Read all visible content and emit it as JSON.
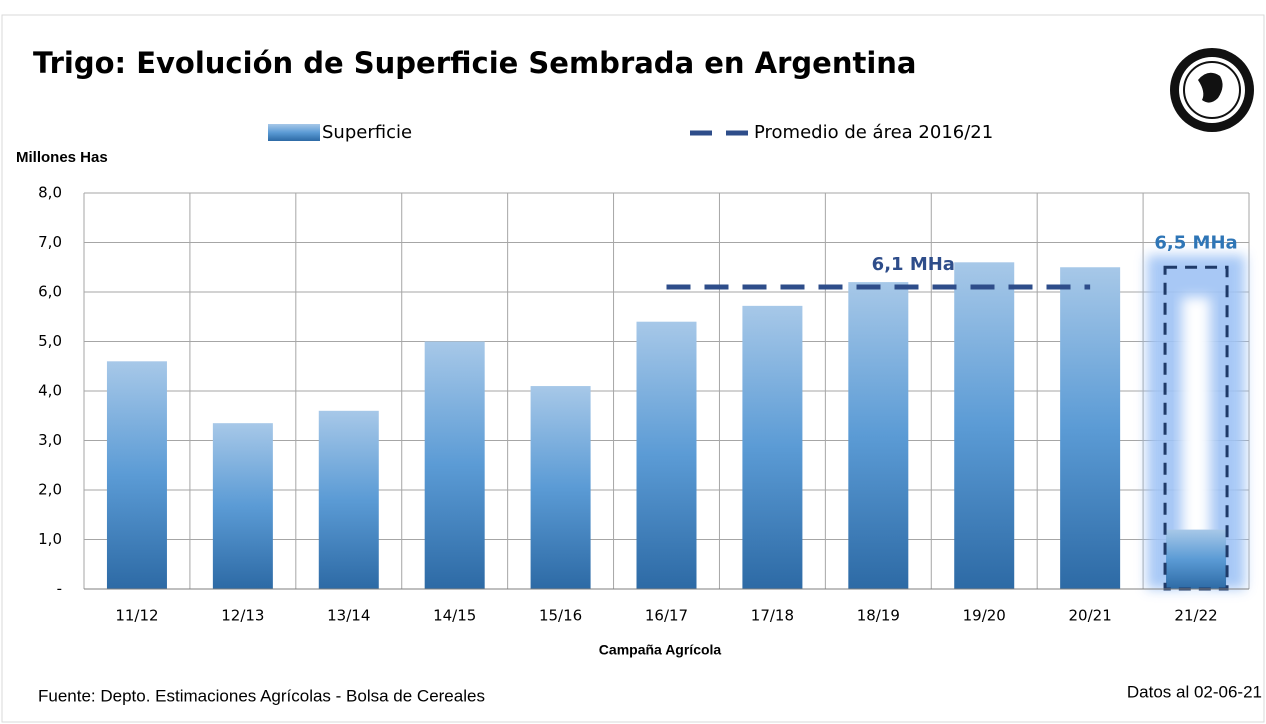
{
  "chart_data": {
    "type": "bar",
    "title": "Trigo: Evolución de Superficie Sembrada en Argentina",
    "y_label": "Millones Has",
    "x_label": "Campaña Agrícola",
    "source": "Fuente: Depto. Estimaciones Agrícolas - Bolsa de Cereales",
    "date_note": "Datos al 02-06-21",
    "categories": [
      "11/12",
      "12/13",
      "13/14",
      "14/15",
      "15/16",
      "16/17",
      "17/18",
      "18/19",
      "19/20",
      "20/21",
      "21/22"
    ],
    "series": [
      {
        "name": "Superficie",
        "color": "#3f7fbf",
        "values": [
          4.6,
          3.35,
          3.6,
          5.0,
          4.1,
          5.4,
          5.72,
          6.2,
          6.6,
          6.5,
          1.2
        ]
      },
      {
        "name": "Promedio de área 2016/21",
        "type": "line",
        "color": "#2e4d8a",
        "values": [
          null,
          null,
          null,
          null,
          null,
          6.1,
          6.1,
          6.1,
          6.1,
          6.1,
          null
        ],
        "label": "6,1 MHa"
      }
    ],
    "projection": {
      "category": "21/22",
      "value": 6.5,
      "label": "6,5 MHa"
    },
    "ylim": [
      0,
      8
    ],
    "yticks": [
      {
        "value": 0,
        "label": "-"
      },
      {
        "value": 1,
        "label": "1,0"
      },
      {
        "value": 2,
        "label": "2,0"
      },
      {
        "value": 3,
        "label": "3,0"
      },
      {
        "value": 4,
        "label": "4,0"
      },
      {
        "value": 5,
        "label": "5,0"
      },
      {
        "value": 6,
        "label": "6,0"
      },
      {
        "value": 7,
        "label": "7,0"
      },
      {
        "value": 8,
        "label": "8,0"
      }
    ],
    "grid": true
  }
}
